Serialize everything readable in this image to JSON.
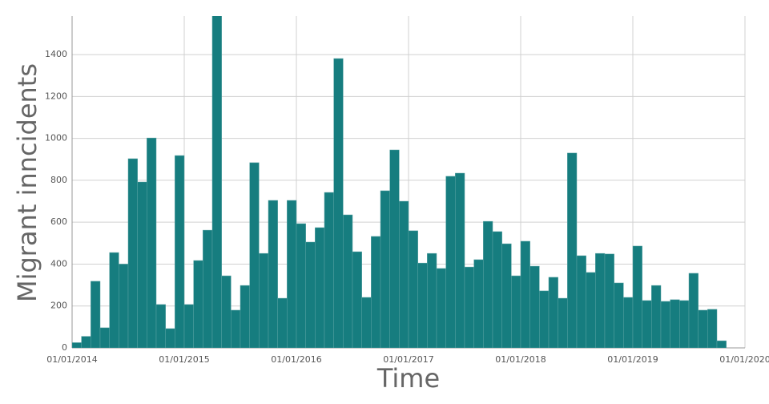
{
  "chart_data": {
    "type": "histogram",
    "xlabel": "Time",
    "ylabel": "Migrant inncidents",
    "color": "#167d7f",
    "grid": true,
    "bins": [
      "2014-01",
      "2014-02",
      "2014-03",
      "2014-04",
      "2014-05",
      "2014-06",
      "2014-07",
      "2014-08",
      "2014-09",
      "2014-10",
      "2014-11",
      "2014-12",
      "2015-01",
      "2015-02",
      "2015-03",
      "2015-04",
      "2015-05",
      "2015-06",
      "2015-07",
      "2015-08",
      "2015-09",
      "2015-10",
      "2015-11",
      "2015-12",
      "2016-01",
      "2016-02",
      "2016-03",
      "2016-04",
      "2016-05",
      "2016-06",
      "2016-07",
      "2016-08",
      "2016-09",
      "2016-10",
      "2016-11",
      "2016-12",
      "2017-01",
      "2017-02",
      "2017-03",
      "2017-04",
      "2017-05",
      "2017-06",
      "2017-07",
      "2017-08",
      "2017-09",
      "2017-10",
      "2017-11",
      "2017-12",
      "2018-01",
      "2018-02",
      "2018-03",
      "2018-04",
      "2018-05",
      "2018-06",
      "2018-07",
      "2018-08",
      "2018-09",
      "2018-10",
      "2018-11",
      "2018-12",
      "2019-01",
      "2019-02",
      "2019-03",
      "2019-04",
      "2019-05",
      "2019-06",
      "2019-07",
      "2019-08",
      "2019-09",
      "2019-10",
      "2019-11"
    ],
    "counts": [
      25,
      55,
      318,
      96,
      455,
      400,
      903,
      792,
      1002,
      207,
      92,
      918,
      207,
      417,
      562,
      1600,
      344,
      180,
      298,
      884,
      451,
      704,
      237,
      704,
      593,
      505,
      574,
      742,
      1381,
      635,
      459,
      241,
      532,
      750,
      945,
      700,
      559,
      405,
      451,
      379,
      819,
      834,
      386,
      421,
      604,
      555,
      497,
      344,
      509,
      390,
      272,
      337,
      237,
      930,
      440,
      360,
      451,
      448,
      310,
      241,
      486,
      226,
      298,
      222,
      230,
      226,
      356,
      180,
      184,
      34
    ],
    "xlim": [
      "2014-01",
      "2020-01"
    ],
    "xticks": [
      {
        "value": "2014-01",
        "label": "01/01/2014"
      },
      {
        "value": "2015-01",
        "label": "01/01/2015"
      },
      {
        "value": "2016-01",
        "label": "01/01/2016"
      },
      {
        "value": "2017-01",
        "label": "01/01/2017"
      },
      {
        "value": "2018-01",
        "label": "01/01/2018"
      },
      {
        "value": "2019-01",
        "label": "01/01/2019"
      },
      {
        "value": "2020-01",
        "label": "01/01/2020"
      }
    ],
    "ylim": [
      0,
      1584
    ],
    "yticks": [
      0,
      200,
      400,
      600,
      800,
      1000,
      1200,
      1400
    ]
  }
}
